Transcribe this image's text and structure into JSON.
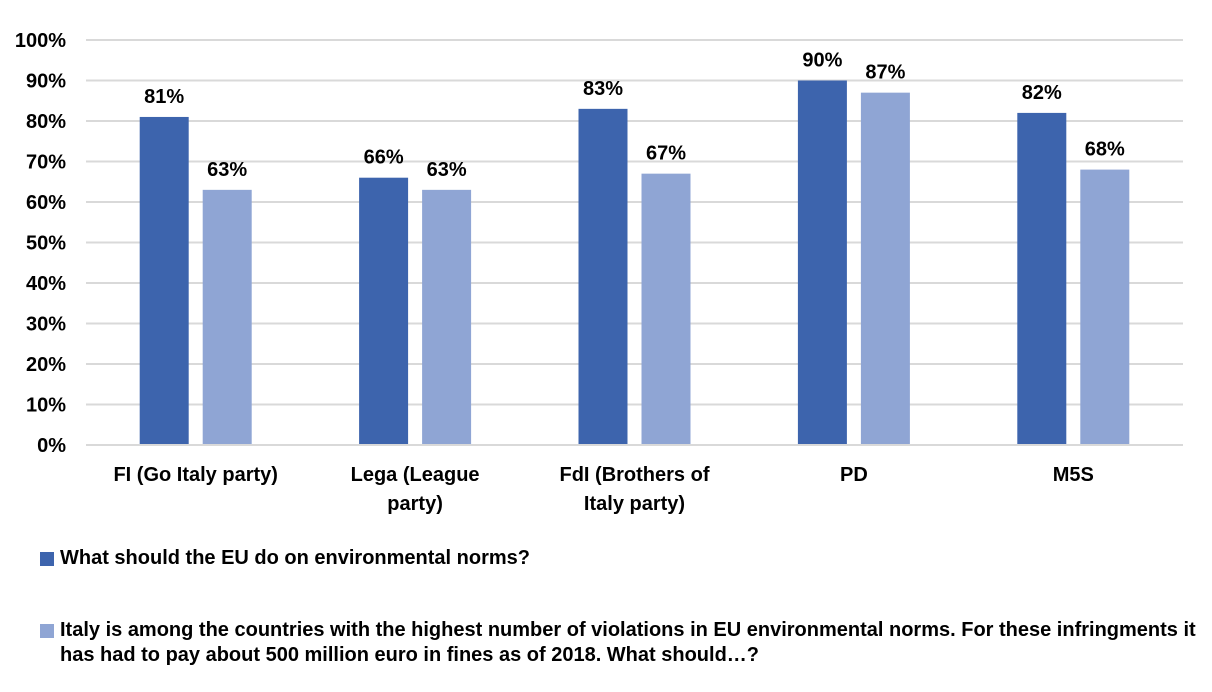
{
  "chart_data": {
    "type": "bar",
    "categories": [
      [
        "FI (Go Italy party)"
      ],
      [
        "Lega (League",
        "party)"
      ],
      [
        "FdI (Brothers of",
        "Italy party)"
      ],
      [
        "PD"
      ],
      [
        "M5S"
      ]
    ],
    "series": [
      {
        "name": "What should the EU do on environmental norms?",
        "values": [
          81,
          66,
          83,
          90,
          82
        ],
        "labels": [
          "81%",
          "66%",
          "83%",
          "90%",
          "82%"
        ],
        "color": "#3d64ad"
      },
      {
        "name": "Italy is among the countries with the highest number of violations in EU environmental norms. For these infringments it has had to pay about 500 million euro in fines as of 2018. What should…?",
        "values": [
          63,
          63,
          67,
          87,
          68
        ],
        "labels": [
          "63%",
          "63%",
          "67%",
          "87%",
          "68%"
        ],
        "color": "#8fa5d4"
      }
    ],
    "ylim": [
      0,
      100
    ],
    "yticks": [
      "0%",
      "10%",
      "20%",
      "30%",
      "40%",
      "50%",
      "60%",
      "70%",
      "80%",
      "90%",
      "100%"
    ],
    "grid": true,
    "gridColor": "#d9d9d9",
    "legend_position": "bottom"
  }
}
